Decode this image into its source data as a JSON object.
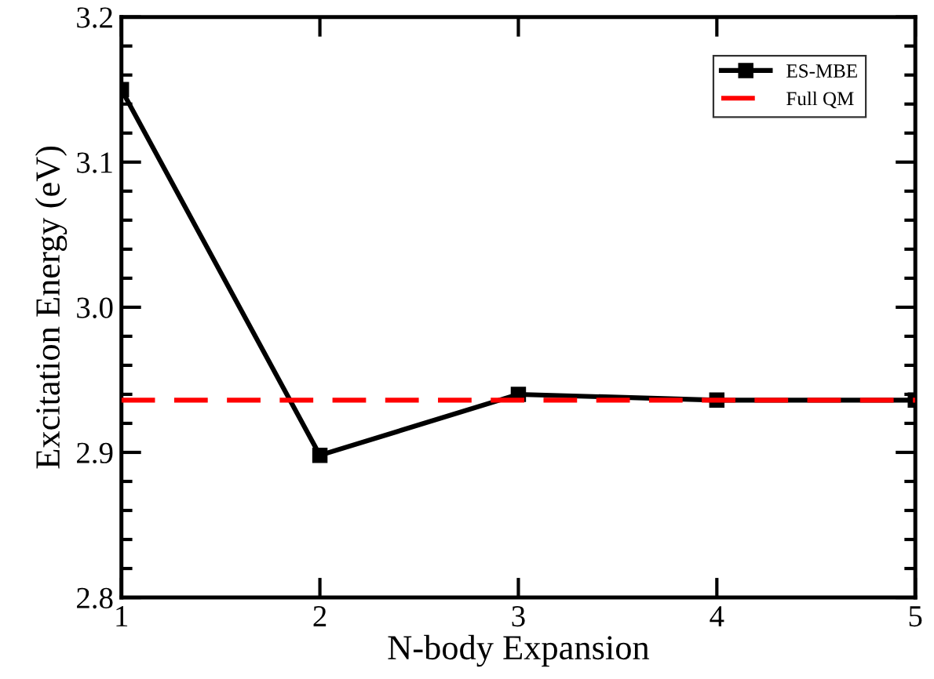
{
  "chart_data": {
    "type": "line",
    "xlabel": "N-body Expansion",
    "ylabel": "Excitation Energy (eV)",
    "x": [
      1,
      2,
      3,
      4,
      5
    ],
    "series": [
      {
        "name": "ES-MBE",
        "color": "#000000",
        "values": [
          3.15,
          2.898,
          2.94,
          2.936,
          2.936
        ]
      }
    ],
    "ref_lines": [
      {
        "axis": "y",
        "value": 2.936,
        "label": "Full QM",
        "color": "#ff0000",
        "line_style": "dashed"
      }
    ],
    "xlim": [
      1,
      5
    ],
    "xticks": [
      1,
      2,
      3,
      4,
      5
    ],
    "ylim": [
      2.8,
      3.2
    ],
    "yticks": [
      {
        "value": 2.8,
        "label": "2.8"
      },
      {
        "value": 2.9,
        "label": "2.9"
      },
      {
        "value": 3.0,
        "label": "3.0"
      },
      {
        "value": 3.1,
        "label": "3.1"
      },
      {
        "value": 3.2,
        "label": "3.2"
      }
    ],
    "marker": "square",
    "line_style": "solid",
    "legend": "top right",
    "grid": false
  }
}
